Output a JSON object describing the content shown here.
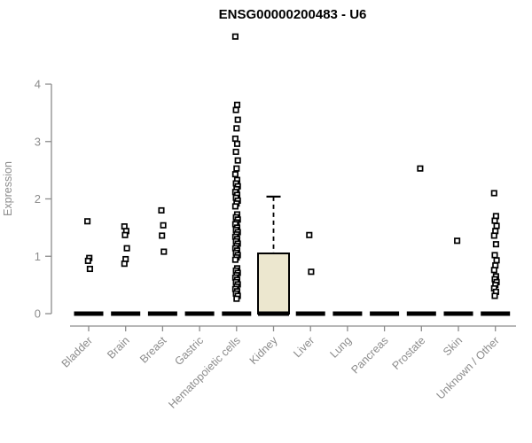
{
  "chart_data": {
    "type": "boxplot",
    "title": "ENSG00000200483 - U6",
    "ylabel": "Expression",
    "xlabel": "",
    "ylim": [
      0,
      4
    ],
    "yticks": [
      0,
      1,
      2,
      3,
      4
    ],
    "grid": false,
    "legend": "none",
    "axis_color": "#8c8c8c",
    "box_fill_color": "#ece7cf",
    "point_color": "#000000",
    "categories": [
      "Bladder",
      "Brain",
      "Breast",
      "Gastric",
      "Hematopoietic cells",
      "Kidney",
      "Liver",
      "Lung",
      "Pancreas",
      "Prostate",
      "Skin",
      "Unknown / Other"
    ],
    "series": [
      {
        "category": "Bladder",
        "median": 0,
        "points": [
          1.61,
          0.97,
          0.92,
          0.78
        ]
      },
      {
        "category": "Brain",
        "median": 0,
        "points": [
          1.52,
          1.44,
          1.37,
          1.14,
          0.95,
          0.87
        ]
      },
      {
        "category": "Breast",
        "median": 0,
        "points": [
          1.8,
          1.54,
          1.36,
          1.08
        ]
      },
      {
        "category": "Gastric",
        "median": 0,
        "points": []
      },
      {
        "category": "Hematopoietic cells",
        "median": 0,
        "points": [
          4.83,
          3.64,
          3.55,
          3.38,
          3.23,
          3.05,
          2.96,
          2.82,
          2.67,
          2.53,
          2.43,
          2.33,
          2.27,
          2.22,
          2.17,
          2.12,
          2.07,
          2.02,
          1.97,
          1.92,
          1.87,
          1.73,
          1.68,
          1.64,
          1.59,
          1.56,
          1.5,
          1.46,
          1.42,
          1.38,
          1.34,
          1.3,
          1.26,
          1.22,
          1.18,
          1.14,
          1.1,
          1.06,
          1.02,
          0.98,
          0.94,
          0.79,
          0.75,
          0.71,
          0.67,
          0.63,
          0.59,
          0.55,
          0.51,
          0.47,
          0.43,
          0.39,
          0.35,
          0.31,
          0.26
        ]
      },
      {
        "category": "Kidney",
        "median": 0,
        "box": {
          "q1": 0,
          "q3": 1.05,
          "whisker_high": 2.04
        },
        "points": []
      },
      {
        "category": "Liver",
        "median": 0,
        "points": [
          1.37,
          0.73
        ]
      },
      {
        "category": "Lung",
        "median": 0,
        "points": []
      },
      {
        "category": "Pancreas",
        "median": 0,
        "points": []
      },
      {
        "category": "Prostate",
        "median": 0,
        "points": [
          2.53
        ]
      },
      {
        "category": "Skin",
        "median": 0,
        "points": [
          1.27
        ]
      },
      {
        "category": "Unknown / Other",
        "median": 0,
        "points": [
          2.1,
          1.7,
          1.62,
          1.53,
          1.44,
          1.36,
          1.21,
          1.02,
          0.93,
          0.84,
          0.76,
          0.65,
          0.6,
          0.55,
          0.5,
          0.44,
          0.38,
          0.31
        ]
      }
    ]
  }
}
